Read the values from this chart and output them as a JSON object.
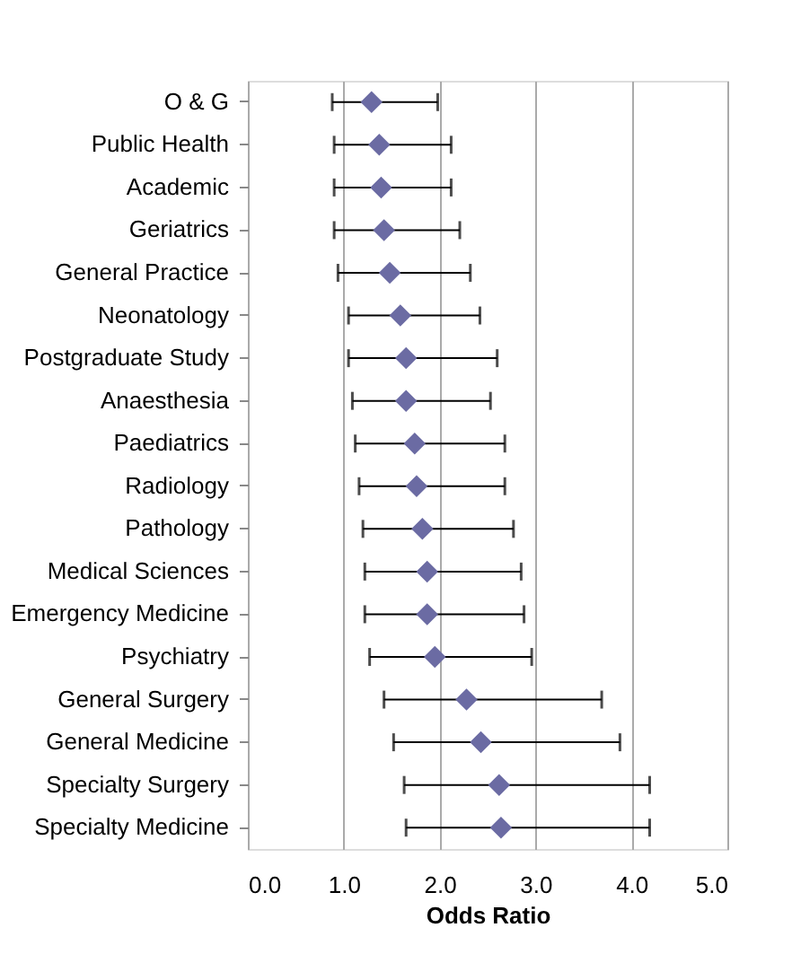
{
  "chart_data": {
    "type": "scatter",
    "orientation": "horizontal",
    "xlabel": "Odds Ratio",
    "categories": [
      "O & G",
      "Public Health",
      "Academic",
      "Geriatrics",
      "General Practice",
      "Neonatology",
      "Postgraduate Study",
      "Anaesthesia",
      "Paediatrics",
      "Radiology",
      "Pathology",
      "Medical Sciences",
      "Emergency Medicine",
      "Psychiatry",
      "General Surgery",
      "General Medicine",
      "Specialty Surgery",
      "Specialty Medicine"
    ],
    "series": [
      {
        "color": "#6b6ba3",
        "values": [
          1.29,
          1.37,
          1.39,
          1.42,
          1.48,
          1.59,
          1.65,
          1.65,
          1.74,
          1.76,
          1.82,
          1.87,
          1.87,
          1.95,
          2.28,
          2.43,
          2.62,
          2.64
        ],
        "errors": [
          [
            0.88,
            1.98
          ],
          [
            0.9,
            2.12
          ],
          [
            0.9,
            2.12
          ],
          [
            0.9,
            2.21
          ],
          [
            0.94,
            2.32
          ],
          [
            1.05,
            2.42
          ],
          [
            1.05,
            2.6
          ],
          [
            1.09,
            2.53
          ],
          [
            1.12,
            2.68
          ],
          [
            1.16,
            2.68
          ],
          [
            1.2,
            2.77
          ],
          [
            1.22,
            2.85
          ],
          [
            1.22,
            2.88
          ],
          [
            1.27,
            2.96
          ],
          [
            1.42,
            3.69
          ],
          [
            1.52,
            3.88
          ],
          [
            1.63,
            4.19
          ],
          [
            1.65,
            4.19
          ]
        ]
      }
    ],
    "xlim": [
      0,
      5
    ],
    "xticks": [
      {
        "value": 0,
        "label": "0.0"
      },
      {
        "value": 1,
        "label": "1.0"
      },
      {
        "value": 2,
        "label": "2.0"
      },
      {
        "value": 3,
        "label": "3.0"
      },
      {
        "value": 4,
        "label": "4.0"
      },
      {
        "value": 5,
        "label": "5.0"
      }
    ],
    "grid": "x",
    "marker": "diamond"
  }
}
